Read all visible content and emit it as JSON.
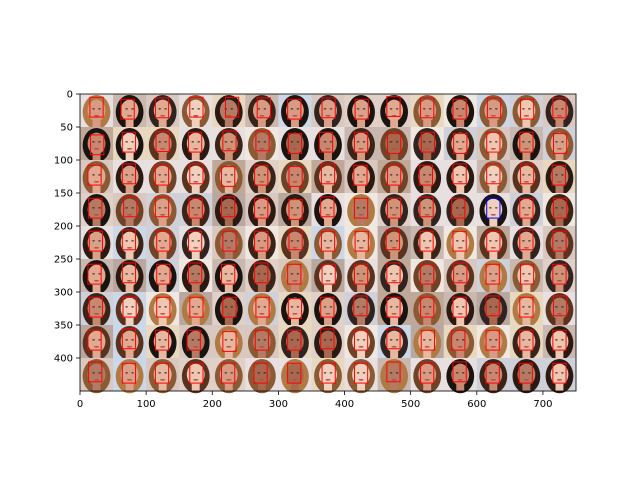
{
  "chart_data": {
    "type": "image-grid",
    "title": "",
    "xlabel": "",
    "ylabel": "",
    "xlim": [
      0,
      750
    ],
    "ylim": [
      450,
      0
    ],
    "x_ticks": [
      0,
      100,
      200,
      300,
      400,
      500,
      600,
      700
    ],
    "y_ticks": [
      0,
      50,
      100,
      150,
      200,
      250,
      300,
      350,
      400
    ],
    "x_tick_labels": [
      "0",
      "100",
      "200",
      "300",
      "400",
      "500",
      "600",
      "700"
    ],
    "y_tick_labels": [
      "0",
      "50",
      "100",
      "150",
      "200",
      "250",
      "300",
      "350",
      "400"
    ],
    "grid": false,
    "legend": "none",
    "grid_rows": 9,
    "grid_cols": 15,
    "cell_size_data_units": 50,
    "box_color": "#ff0000",
    "highlight_box_color": "#0000ff",
    "highlight_cell": {
      "row": 3,
      "col": 12
    },
    "face_boxes_note_free": true,
    "box_offsets": [
      [
        [
          15,
          5
        ],
        [
          12,
          8
        ],
        [
          14,
          6
        ],
        [
          16,
          5
        ],
        [
          20,
          5
        ],
        [
          18,
          6
        ],
        [
          14,
          8
        ],
        [
          16,
          6
        ],
        [
          16,
          8
        ],
        [
          14,
          4
        ],
        [
          15,
          6
        ],
        [
          14,
          8
        ],
        [
          16,
          6
        ],
        [
          16,
          8
        ],
        [
          15,
          6
        ]
      ],
      [
        [
          16,
          12
        ],
        [
          14,
          8
        ],
        [
          15,
          7
        ],
        [
          14,
          8
        ],
        [
          16,
          6
        ],
        [
          16,
          6
        ],
        [
          15,
          10
        ],
        [
          12,
          8
        ],
        [
          15,
          8
        ],
        [
          15,
          10
        ],
        [
          16,
          8
        ],
        [
          15,
          10
        ],
        [
          15,
          8
        ],
        [
          15,
          8
        ],
        [
          16,
          10
        ]
      ],
      [
        [
          12,
          8
        ],
        [
          14,
          6
        ],
        [
          14,
          8
        ],
        [
          16,
          6
        ],
        [
          14,
          10
        ],
        [
          14,
          8
        ],
        [
          16,
          10
        ],
        [
          15,
          6
        ],
        [
          14,
          8
        ],
        [
          15,
          8
        ],
        [
          13,
          8
        ],
        [
          14,
          6
        ],
        [
          15,
          6
        ],
        [
          16,
          6
        ],
        [
          14,
          8
        ]
      ],
      [
        [
          13,
          8
        ],
        [
          16,
          6
        ],
        [
          14,
          6
        ],
        [
          15,
          8
        ],
        [
          14,
          6
        ],
        [
          14,
          8
        ],
        [
          16,
          10
        ],
        [
          14,
          6
        ],
        [
          15,
          8
        ],
        [
          15,
          8
        ],
        [
          14,
          6
        ],
        [
          12,
          8
        ],
        [
          15,
          8
        ],
        [
          15,
          8
        ],
        [
          16,
          8
        ]
      ],
      [
        [
          14,
          8
        ],
        [
          14,
          6
        ],
        [
          16,
          8
        ],
        [
          14,
          8
        ],
        [
          16,
          8
        ],
        [
          14,
          8
        ],
        [
          16,
          6
        ],
        [
          15,
          8
        ],
        [
          16,
          8
        ],
        [
          13,
          6
        ],
        [
          14,
          8
        ],
        [
          14,
          8
        ],
        [
          15,
          8
        ],
        [
          15,
          6
        ],
        [
          15,
          8
        ]
      ],
      [
        [
          12,
          8
        ],
        [
          14,
          6
        ],
        [
          16,
          8
        ],
        [
          14,
          6
        ],
        [
          14,
          8
        ],
        [
          14,
          6
        ],
        [
          14,
          8
        ],
        [
          16,
          8
        ],
        [
          15,
          8
        ],
        [
          14,
          6
        ],
        [
          15,
          8
        ],
        [
          15,
          6
        ],
        [
          14,
          8
        ],
        [
          16,
          8
        ],
        [
          15,
          8
        ]
      ],
      [
        [
          14,
          8
        ],
        [
          15,
          8
        ],
        [
          16,
          8
        ],
        [
          16,
          8
        ],
        [
          16,
          8
        ],
        [
          16,
          8
        ],
        [
          15,
          10
        ],
        [
          14,
          8
        ],
        [
          14,
          6
        ],
        [
          14,
          8
        ],
        [
          15,
          8
        ],
        [
          14,
          8
        ],
        [
          14,
          6
        ],
        [
          15,
          8
        ],
        [
          16,
          6
        ]
      ],
      [
        [
          12,
          8
        ],
        [
          14,
          6
        ],
        [
          14,
          8
        ],
        [
          12,
          8
        ],
        [
          16,
          10
        ],
        [
          15,
          8
        ],
        [
          14,
          8
        ],
        [
          14,
          6
        ],
        [
          15,
          8
        ],
        [
          14,
          6
        ],
        [
          16,
          8
        ],
        [
          12,
          8
        ],
        [
          14,
          8
        ],
        [
          15,
          8
        ],
        [
          15,
          8
        ]
      ],
      [
        [
          13,
          6
        ],
        [
          14,
          8
        ],
        [
          14,
          8
        ],
        [
          16,
          8
        ],
        [
          14,
          8
        ],
        [
          13,
          8
        ],
        [
          14,
          8
        ],
        [
          16,
          8
        ],
        [
          15,
          8
        ],
        [
          14,
          6
        ],
        [
          15,
          8
        ],
        [
          14,
          6
        ],
        [
          14,
          8
        ],
        [
          14,
          8
        ],
        [
          15,
          8
        ]
      ]
    ],
    "skin_palette": [
      "#e8b7a0",
      "#d99a84",
      "#c98770",
      "#f0c6b0",
      "#b47a64",
      "#e2a890",
      "#cf9478",
      "#f2d0be",
      "#a8684f",
      "#dba088"
    ],
    "hair_palette": [
      "#2a1a12",
      "#5a3320",
      "#8a5a35",
      "#1a1410",
      "#b07a45",
      "#3a2418",
      "#6e4428",
      "#2f2420"
    ],
    "bg_palette": [
      "#d8c8c0",
      "#e0d0c8",
      "#c8b8b0",
      "#b8a8a0",
      "#e8e0e0",
      "#ccd8e8",
      "#e8d8c0",
      "#d0d0d8",
      "#c0a898",
      "#f0e8e0"
    ]
  }
}
